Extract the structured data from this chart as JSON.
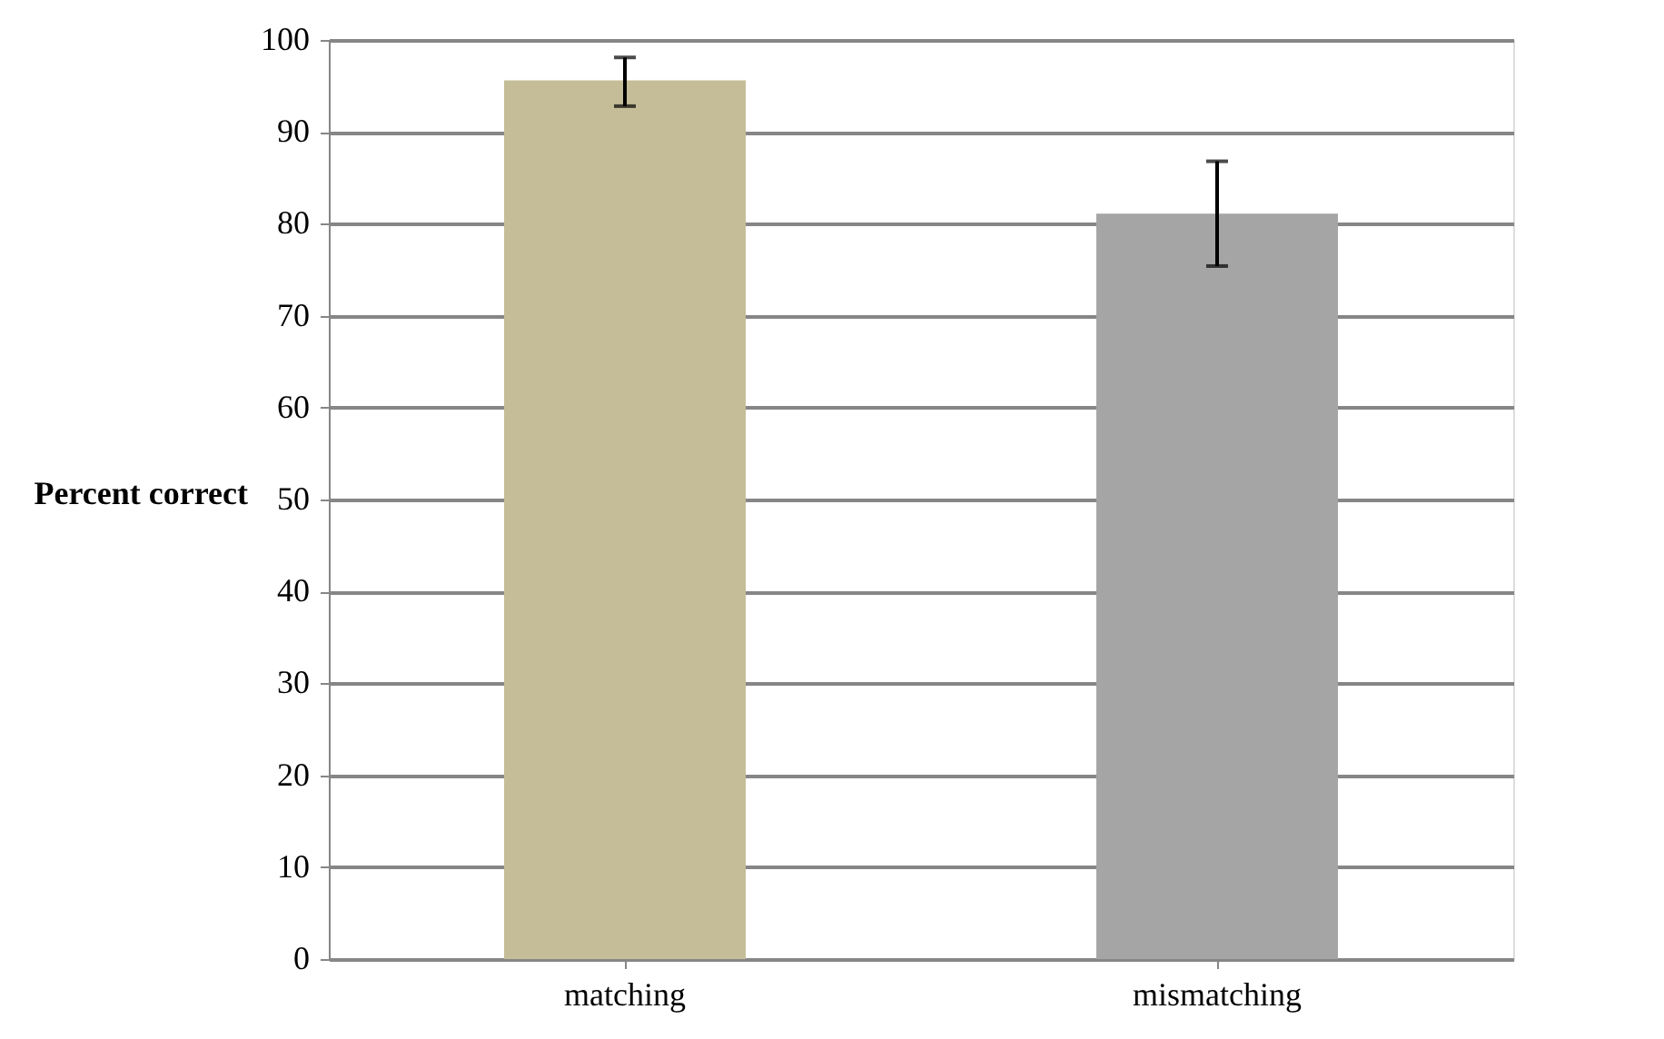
{
  "chart_data": {
    "type": "bar",
    "ylabel": "Percent correct",
    "categories": [
      "matching",
      "mismatching"
    ],
    "values": [
      95.6,
      81.1
    ],
    "colors": [
      "#c4bd97",
      "#a5a5a5"
    ],
    "errors": [
      [
        92.8,
        98.1
      ],
      [
        75.4,
        86.8
      ]
    ],
    "ylim": [
      0,
      100
    ],
    "yticks": [
      0,
      10,
      20,
      30,
      40,
      50,
      60,
      70,
      80,
      90,
      100
    ],
    "grid": "y"
  }
}
